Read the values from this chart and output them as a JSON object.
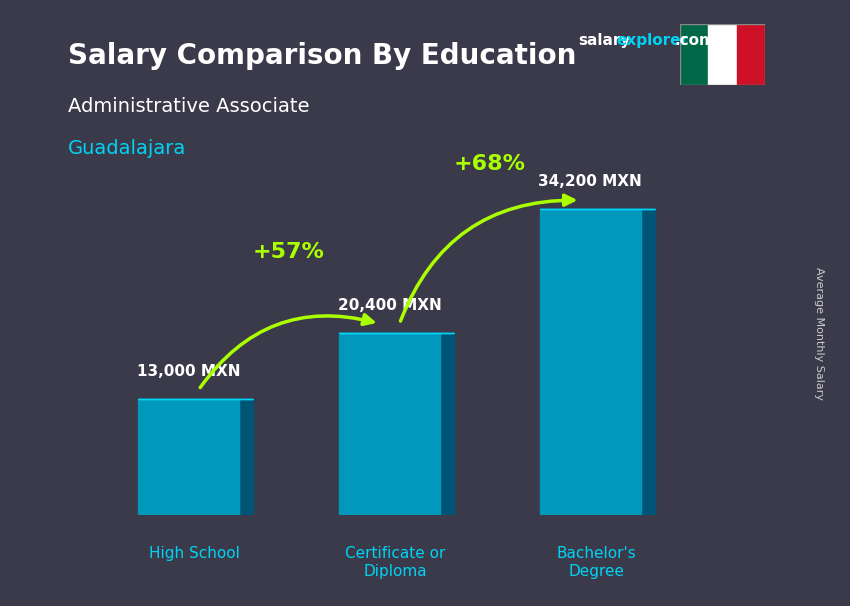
{
  "title_main": "Salary Comparison By Education",
  "subtitle1": "Administrative Associate",
  "subtitle2": "Guadalajara",
  "categories": [
    "High School",
    "Certificate or\nDiploma",
    "Bachelor's\nDegree"
  ],
  "values": [
    13000,
    20400,
    34200
  ],
  "value_labels": [
    "13,000 MXN",
    "20,400 MXN",
    "34,200 MXN"
  ],
  "pct_labels": [
    "+57%",
    "+68%"
  ],
  "bar_color_top": "#00d4f5",
  "bar_color_mid": "#0099bb",
  "bar_color_dark": "#007799",
  "bar_color_side": "#005577",
  "bg_color": "#3a3a4a",
  "title_color": "#ffffff",
  "subtitle1_color": "#ffffff",
  "subtitle2_color": "#00d4f5",
  "label_color": "#ffffff",
  "pct_color": "#aaff00",
  "cat_color": "#00d4f5",
  "ylabel_color": "#cccccc",
  "site_text": "salaryexplorer.com",
  "site_color1": "#ffffff",
  "site_color2": "#00d4f5",
  "ylabel_text": "Average Monthly Salary",
  "arrow_color": "#aaff00",
  "ylim": [
    0,
    42000
  ],
  "bar_width": 0.5
}
